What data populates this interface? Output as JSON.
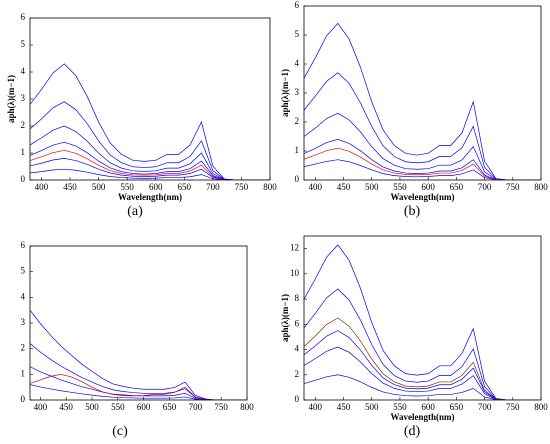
{
  "chart_data": [
    {
      "type": "line",
      "caption": "(a)",
      "xlabel": "Wavelength(nm)",
      "ylabel": "aph(λ)(m−1)",
      "x": [
        380,
        400,
        420,
        440,
        460,
        480,
        500,
        520,
        540,
        560,
        580,
        600,
        620,
        640,
        660,
        680,
        700,
        720,
        740,
        760,
        780,
        800
      ],
      "xlim": [
        380,
        800
      ],
      "xticks": [
        400,
        450,
        500,
        550,
        600,
        650,
        700,
        750,
        800
      ],
      "ylim": [
        0,
        6
      ],
      "yticks": [
        0,
        1,
        2,
        3,
        4,
        5,
        6
      ],
      "series": [
        {
          "color": "#0000ff",
          "values": [
            2.8,
            3.35,
            3.96,
            4.3,
            3.87,
            3.1,
            2.15,
            1.38,
            0.95,
            0.73,
            0.69,
            0.73,
            0.95,
            0.95,
            1.29,
            2.15,
            0.52,
            0.04,
            0,
            0,
            0,
            0
          ]
        },
        {
          "color": "#0000ff",
          "values": [
            1.89,
            2.26,
            2.67,
            2.9,
            2.61,
            2.09,
            1.45,
            0.93,
            0.64,
            0.49,
            0.46,
            0.49,
            0.64,
            0.64,
            0.87,
            1.45,
            0.35,
            0.03,
            0,
            0,
            0,
            0
          ]
        },
        {
          "color": "#0000ff",
          "values": [
            1.3,
            1.56,
            1.84,
            2.0,
            1.8,
            1.44,
            1.0,
            0.64,
            0.44,
            0.34,
            0.32,
            0.34,
            0.44,
            0.44,
            0.6,
            1.0,
            0.24,
            0.02,
            0,
            0,
            0,
            0
          ]
        },
        {
          "color": "#0000ff",
          "values": [
            0.91,
            1.09,
            1.29,
            1.4,
            1.26,
            1.01,
            0.7,
            0.45,
            0.31,
            0.24,
            0.22,
            0.24,
            0.31,
            0.31,
            0.42,
            0.7,
            0.17,
            0.01,
            0,
            0,
            0,
            0
          ]
        },
        {
          "color": "#0000ff",
          "values": [
            0.52,
            0.62,
            0.74,
            0.8,
            0.72,
            0.58,
            0.4,
            0.26,
            0.18,
            0.14,
            0.13,
            0.14,
            0.18,
            0.18,
            0.24,
            0.4,
            0.1,
            0.01,
            0,
            0,
            0,
            0
          ]
        },
        {
          "color": "#0000ff",
          "values": [
            0.26,
            0.31,
            0.37,
            0.4,
            0.36,
            0.29,
            0.2,
            0.13,
            0.09,
            0.07,
            0.06,
            0.07,
            0.09,
            0.09,
            0.12,
            0.2,
            0.05,
            0,
            0,
            0,
            0,
            0
          ]
        },
        {
          "color": "#ff0000",
          "values": [
            0.72,
            0.86,
            1.01,
            1.1,
            0.99,
            0.79,
            0.55,
            0.35,
            0.24,
            0.19,
            0.18,
            0.19,
            0.24,
            0.24,
            0.33,
            0.55,
            0.13,
            0.01,
            0,
            0,
            0,
            0
          ]
        }
      ]
    },
    {
      "type": "line",
      "caption": "(b)",
      "xlabel": "Wavelength(nm)",
      "ylabel": "aph(λ)(m−1)",
      "x": [
        380,
        400,
        420,
        440,
        460,
        480,
        500,
        520,
        540,
        560,
        580,
        600,
        620,
        640,
        660,
        680,
        700,
        720,
        740,
        760,
        780,
        800
      ],
      "xlim": [
        380,
        800
      ],
      "xticks": [
        400,
        450,
        500,
        550,
        600,
        650,
        700,
        750,
        800
      ],
      "ylim": [
        0,
        6
      ],
      "yticks": [
        0,
        1,
        2,
        3,
        4,
        5,
        6
      ],
      "series": [
        {
          "color": "#0000ff",
          "values": [
            3.51,
            4.21,
            4.97,
            5.4,
            4.86,
            3.89,
            2.7,
            1.73,
            1.19,
            0.92,
            0.86,
            0.92,
            1.19,
            1.19,
            1.62,
            2.7,
            0.65,
            0.05,
            0,
            0,
            0,
            0
          ]
        },
        {
          "color": "#0000ff",
          "values": [
            2.41,
            2.89,
            3.4,
            3.7,
            3.33,
            2.66,
            1.85,
            1.18,
            0.81,
            0.63,
            0.59,
            0.63,
            0.81,
            0.81,
            1.11,
            1.85,
            0.44,
            0.04,
            0,
            0,
            0,
            0
          ]
        },
        {
          "color": "#0000ff",
          "values": [
            1.5,
            1.79,
            2.12,
            2.3,
            2.07,
            1.66,
            1.15,
            0.74,
            0.51,
            0.39,
            0.37,
            0.39,
            0.51,
            0.51,
            0.69,
            1.15,
            0.28,
            0.02,
            0,
            0,
            0,
            0
          ]
        },
        {
          "color": "#0000ff",
          "values": [
            0.91,
            1.09,
            1.29,
            1.4,
            1.26,
            1.01,
            0.7,
            0.45,
            0.31,
            0.24,
            0.22,
            0.24,
            0.31,
            0.31,
            0.42,
            0.7,
            0.17,
            0.01,
            0,
            0,
            0,
            0
          ]
        },
        {
          "color": "#0000ff",
          "values": [
            0.46,
            0.55,
            0.64,
            0.7,
            0.63,
            0.5,
            0.35,
            0.22,
            0.15,
            0.12,
            0.11,
            0.12,
            0.15,
            0.15,
            0.21,
            0.35,
            0.08,
            0.01,
            0,
            0,
            0,
            0
          ]
        },
        {
          "color": "#ff0000",
          "values": [
            0.72,
            0.86,
            1.01,
            1.1,
            0.99,
            0.79,
            0.55,
            0.35,
            0.24,
            0.19,
            0.18,
            0.19,
            0.24,
            0.24,
            0.33,
            0.55,
            0.13,
            0.01,
            0,
            0,
            0,
            0
          ]
        }
      ]
    },
    {
      "type": "line",
      "caption": "(c)",
      "x": [
        380,
        400,
        420,
        440,
        460,
        480,
        500,
        520,
        540,
        560,
        580,
        600,
        620,
        640,
        660,
        680,
        700,
        720,
        740,
        760,
        780,
        800
      ],
      "xlim": [
        380,
        800
      ],
      "xticks": [
        400,
        450,
        500,
        550,
        600,
        650,
        700,
        750,
        800
      ],
      "ylim": [
        0,
        6
      ],
      "yticks": [
        0,
        1,
        2,
        3,
        4,
        5,
        6
      ],
      "series": [
        {
          "color": "#0000ff",
          "values": [
            3.5,
            2.98,
            2.52,
            2.1,
            1.75,
            1.4,
            1.12,
            0.84,
            0.63,
            0.53,
            0.46,
            0.42,
            0.42,
            0.42,
            0.49,
            0.7,
            0.18,
            0.04,
            0,
            0,
            0,
            0
          ]
        },
        {
          "color": "#0000ff",
          "values": [
            2.2,
            1.87,
            1.58,
            1.32,
            1.1,
            0.88,
            0.7,
            0.53,
            0.4,
            0.33,
            0.29,
            0.26,
            0.26,
            0.26,
            0.31,
            0.44,
            0.11,
            0.02,
            0,
            0,
            0,
            0
          ]
        },
        {
          "color": "#0000ff",
          "values": [
            1.3,
            1.1,
            0.94,
            0.78,
            0.65,
            0.52,
            0.42,
            0.31,
            0.23,
            0.2,
            0.17,
            0.16,
            0.16,
            0.16,
            0.18,
            0.26,
            0.07,
            0.01,
            0,
            0,
            0,
            0
          ]
        },
        {
          "color": "#0000ff",
          "values": [
            0.6,
            0.51,
            0.43,
            0.36,
            0.3,
            0.24,
            0.19,
            0.14,
            0.11,
            0.09,
            0.08,
            0.07,
            0.07,
            0.07,
            0.08,
            0.12,
            0.03,
            0.01,
            0,
            0,
            0,
            0
          ]
        },
        {
          "color": "#cc0000",
          "values": [
            0.65,
            0.78,
            0.92,
            1.0,
            0.9,
            0.72,
            0.5,
            0.32,
            0.22,
            0.17,
            0.16,
            0.17,
            0.22,
            0.22,
            0.3,
            0.5,
            0.12,
            0.01,
            0,
            0,
            0,
            0
          ]
        }
      ]
    },
    {
      "type": "line",
      "caption": "(d)",
      "xlabel": "Wavelength(nm)",
      "ylabel": "aph(λ)(m−1)",
      "x": [
        380,
        400,
        420,
        440,
        460,
        480,
        500,
        520,
        540,
        560,
        580,
        600,
        620,
        640,
        660,
        680,
        700,
        720,
        740,
        760,
        780,
        800
      ],
      "xlim": [
        380,
        800
      ],
      "xticks": [
        400,
        450,
        500,
        550,
        600,
        650,
        700,
        750,
        800
      ],
      "ylim": [
        0,
        13
      ],
      "yticks": [
        0,
        2,
        4,
        6,
        8,
        10,
        12
      ],
      "series": [
        {
          "color": "#0000ff",
          "values": [
            8.0,
            9.59,
            11.32,
            12.3,
            11.07,
            8.86,
            6.15,
            3.94,
            2.71,
            2.09,
            1.97,
            2.09,
            2.71,
            2.71,
            3.69,
            5.66,
            1.48,
            0.12,
            0,
            0,
            0,
            0
          ]
        },
        {
          "color": "#0000ff",
          "values": [
            5.72,
            6.86,
            8.1,
            8.8,
            7.92,
            6.34,
            4.4,
            2.82,
            1.94,
            1.5,
            1.41,
            1.5,
            1.94,
            1.94,
            2.64,
            4.05,
            1.06,
            0.09,
            0,
            0,
            0,
            0
          ]
        },
        {
          "color": "#0000ff",
          "values": [
            3.58,
            4.29,
            5.06,
            5.5,
            4.95,
            3.96,
            2.75,
            1.76,
            1.21,
            0.94,
            0.88,
            0.94,
            1.21,
            1.21,
            1.65,
            2.53,
            0.66,
            0.06,
            0,
            0,
            0,
            0
          ]
        },
        {
          "color": "#0000ff",
          "values": [
            2.73,
            3.28,
            3.86,
            4.2,
            3.78,
            3.02,
            2.1,
            1.34,
            0.92,
            0.71,
            0.67,
            0.71,
            0.92,
            0.92,
            1.26,
            1.93,
            0.5,
            0.04,
            0,
            0,
            0,
            0
          ]
        },
        {
          "color": "#0000ff",
          "values": [
            1.3,
            1.56,
            1.84,
            2.0,
            1.8,
            1.44,
            1.0,
            0.64,
            0.44,
            0.34,
            0.32,
            0.34,
            0.44,
            0.44,
            0.6,
            0.92,
            0.24,
            0.02,
            0,
            0,
            0,
            0
          ]
        },
        {
          "color": "#8b2500",
          "values": [
            4.23,
            5.07,
            5.98,
            6.5,
            5.85,
            4.68,
            3.25,
            2.08,
            1.43,
            1.11,
            1.04,
            1.11,
            1.43,
            1.43,
            1.95,
            2.99,
            0.78,
            0.07,
            0,
            0,
            0,
            0
          ]
        }
      ]
    }
  ]
}
